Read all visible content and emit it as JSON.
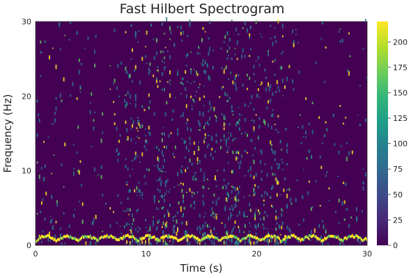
{
  "chart_data": {
    "type": "heatmap",
    "title": "Fast Hilbert Spectrogram",
    "xlabel": "Time (s)",
    "ylabel": "Frequency (Hz)",
    "xlim": [
      0,
      30
    ],
    "ylim": [
      0,
      30
    ],
    "xticks": [
      "0",
      "10",
      "20",
      "30"
    ],
    "xtick_values": [
      0,
      10,
      20,
      30
    ],
    "yticks": [
      "0",
      "10",
      "20",
      "30"
    ],
    "ytick_values": [
      0,
      10,
      20,
      30
    ],
    "colorbar": {
      "min": 0,
      "max": 220,
      "ticks": [
        "0",
        "25",
        "50",
        "75",
        "100",
        "125",
        "150",
        "175",
        "200"
      ],
      "tick_values": [
        0,
        25,
        50,
        75,
        100,
        125,
        150,
        175,
        200
      ],
      "colormap": "viridis"
    },
    "grid": false,
    "background_color": "#440154",
    "colormap_stops": [
      "#440154",
      "#482878",
      "#3e4989",
      "#31688e",
      "#26828e",
      "#1f9e89",
      "#35b779",
      "#6ece58",
      "#b5de2b",
      "#fde725"
    ]
  }
}
